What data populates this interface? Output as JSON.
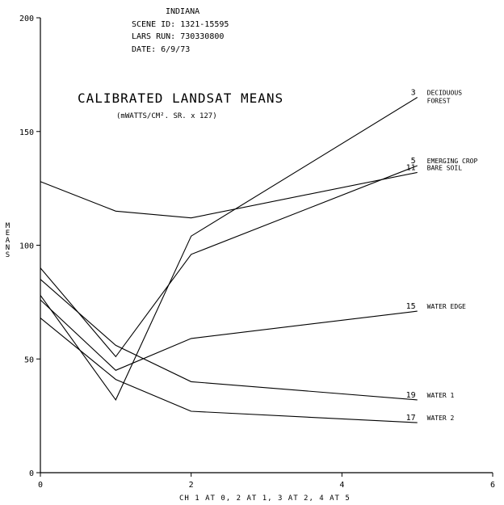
{
  "header": {
    "state": "INDIANA",
    "scene_id": "SCENE ID:  1321-15595",
    "lars_run": "LARS RUN:  730330800",
    "date": "DATE:  6/9/73"
  },
  "chart_data": {
    "type": "line",
    "title": "CALIBRATED LANDSAT MEANS",
    "subtitle": "(mWATTS/CM². SR. x 127)",
    "xlabel": "CH 1 AT 0, 2 AT 1, 3 AT 2, 4 AT 5",
    "ylabel": "MEANS",
    "xlim": [
      0,
      6
    ],
    "ylim": [
      0,
      200
    ],
    "xticks": [
      0,
      2,
      4,
      6
    ],
    "xtick_labels": [
      "0",
      "2",
      "4",
      "6"
    ],
    "yticks": [
      0,
      50,
      100,
      150,
      200
    ],
    "ytick_labels": [
      "0",
      "50",
      "100",
      "150",
      "200"
    ],
    "x": [
      0,
      1,
      2,
      5
    ],
    "series": [
      {
        "number": "3",
        "label_lines": [
          "DECIDUOUS",
          "FOREST"
        ],
        "values": [
          78,
          32,
          104,
          165
        ]
      },
      {
        "number": "5",
        "label_lines": [
          "EMERGING CROP"
        ],
        "values": [
          90,
          51,
          96,
          135
        ]
      },
      {
        "number": "11",
        "label_lines": [
          "BARE SOIL"
        ],
        "values": [
          128,
          115,
          112,
          132
        ]
      },
      {
        "number": "15",
        "label_lines": [
          "WATER EDGE"
        ],
        "values": [
          76,
          45,
          59,
          71
        ]
      },
      {
        "number": "19",
        "label_lines": [
          "WATER 1"
        ],
        "values": [
          85,
          56,
          40,
          32
        ]
      },
      {
        "number": "17",
        "label_lines": [
          "WATER 2"
        ],
        "values": [
          68,
          41,
          27,
          22
        ]
      }
    ]
  }
}
